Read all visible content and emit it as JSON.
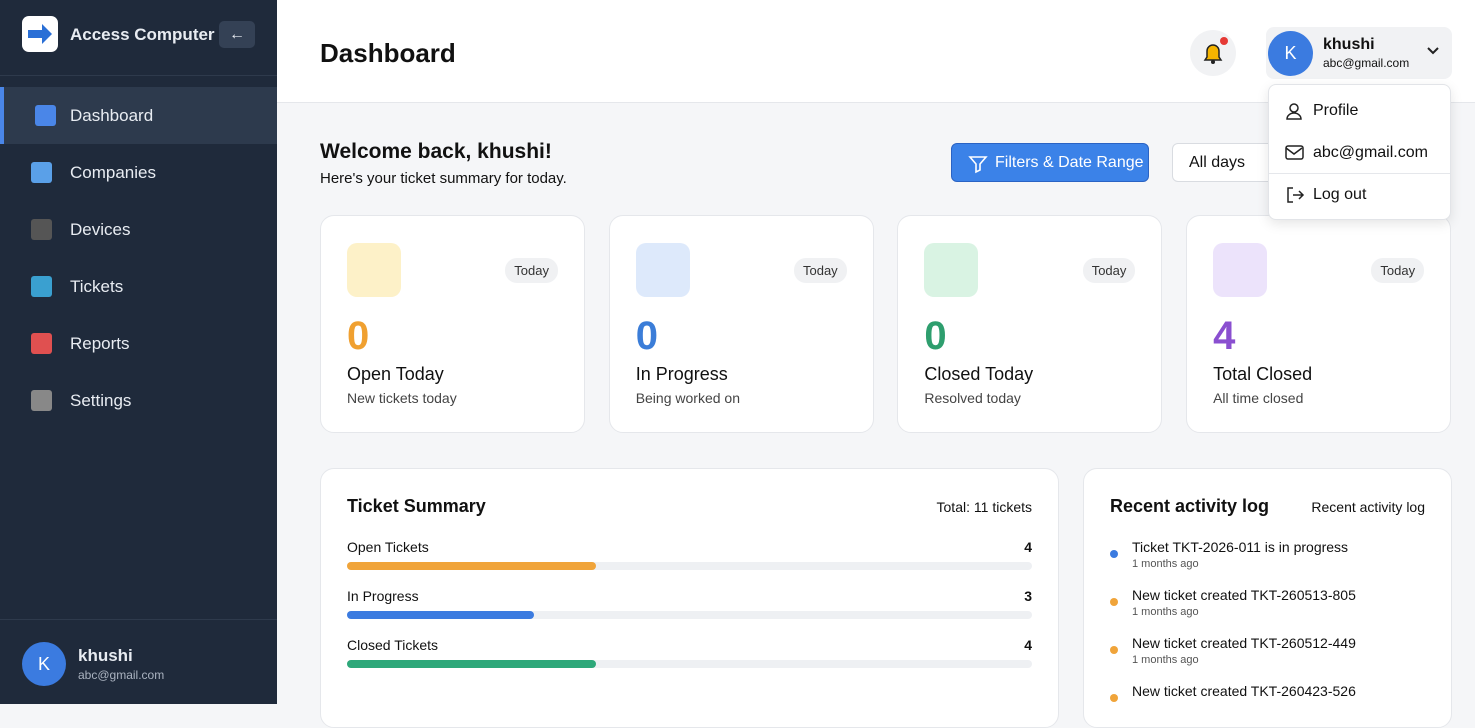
{
  "sidebar": {
    "brand": "Access Computer",
    "nav": [
      "Dashboard",
      "Companies",
      "Devices",
      "Tickets",
      "Reports",
      "Settings"
    ],
    "user": {
      "initial": "K",
      "name": "khushi",
      "email": "abc@gmail.com"
    }
  },
  "header": {
    "title": "Dashboard",
    "user": {
      "initial": "K",
      "name": "khushi",
      "email": "abc@gmail.com"
    }
  },
  "dropdown": [
    "Profile",
    "abc@gmail.com",
    "Log out"
  ],
  "welcome": {
    "title": "Welcome back, khushi!",
    "subtitle": "Here's your ticket summary for today."
  },
  "filters": {
    "button": "Filters & Date Range",
    "select": "All days"
  },
  "cards": [
    {
      "badge": "Today",
      "value": 0,
      "title": "Open Today",
      "subtitle": "New tickets today"
    },
    {
      "badge": "Today",
      "value": 0,
      "title": "In Progress",
      "subtitle": "Being worked on"
    },
    {
      "badge": "Today",
      "value": 0,
      "title": "Closed Today",
      "subtitle": "Resolved today"
    },
    {
      "badge": "Today",
      "value": 4,
      "title": "Total Closed",
      "subtitle": "All time closed"
    }
  ],
  "summary": {
    "title": "Ticket Summary",
    "total_text": "Total:",
    "total": 11,
    "total_unit": "tickets",
    "rows": [
      {
        "label": "Open Tickets",
        "value": 4
      },
      {
        "label": "In Progress",
        "value": 3
      },
      {
        "label": "Closed Tickets",
        "value": 4
      }
    ]
  },
  "activity": {
    "title": "Recent activity log",
    "link": "Recent activity log",
    "items": [
      {
        "text": "Ticket TKT-2026-011 is in progress",
        "time": "1 months ago"
      },
      {
        "text": "New ticket created TKT-260513-805",
        "time": "1 months ago"
      },
      {
        "text": "New ticket created TKT-260512-449",
        "time": "1 months ago"
      },
      {
        "text": "New ticket created TKT-260423-526"
      }
    ]
  }
}
